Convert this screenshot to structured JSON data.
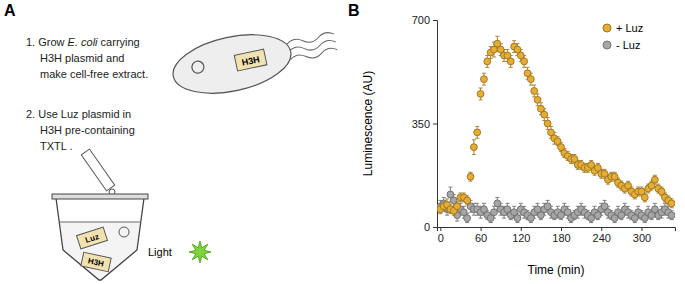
{
  "diagram": {
    "panel_label": "A",
    "step1": {
      "lines": [
        [
          {
            "text": "1. Grow "
          },
          {
            "text": "E. coli",
            "italic": true
          },
          {
            "text": " carrying"
          }
        ],
        [
          {
            "text": "H3H plasmid and"
          }
        ],
        [
          {
            "text": "make cell-free extract."
          }
        ]
      ],
      "cell_label": "H3H"
    },
    "step2": {
      "lines": [
        [
          {
            "text": "2. Use Luz plasmid in"
          }
        ],
        [
          {
            "text": "H3H pre-containing"
          }
        ],
        [
          {
            "text": "TXTL ."
          }
        ]
      ],
      "tube_labels": [
        "Luz",
        "H3H"
      ],
      "output_label": "Light"
    }
  },
  "chart_data": {
    "type": "scatter",
    "title": "B",
    "x_label": "Time (min)",
    "y_label": "Luminescence (AU)",
    "x": [
      0,
      5,
      10,
      15,
      20,
      25,
      30,
      35,
      40,
      45,
      50,
      55,
      60,
      65,
      70,
      75,
      80,
      85,
      90,
      95,
      100,
      105,
      110,
      115,
      120,
      125,
      130,
      135,
      140,
      145,
      150,
      155,
      160,
      165,
      170,
      175,
      180,
      185,
      190,
      195,
      200,
      205,
      210,
      215,
      220,
      225,
      230,
      235,
      240,
      245,
      250,
      255,
      260,
      265,
      270,
      275,
      280,
      285,
      290,
      295,
      300,
      305,
      310,
      315,
      320,
      325,
      330,
      335,
      340,
      345
    ],
    "series": [
      {
        "name": "+ Luz",
        "color": "#e6ad35",
        "marker": "circle",
        "values": [
          60,
          70,
          75,
          60,
          55,
          70,
          100,
          100,
          90,
          170,
          270,
          320,
          450,
          500,
          560,
          590,
          600,
          620,
          600,
          580,
          580,
          560,
          610,
          600,
          580,
          560,
          520,
          500,
          460,
          430,
          400,
          380,
          350,
          320,
          300,
          290,
          270,
          250,
          240,
          230,
          230,
          210,
          210,
          200,
          200,
          210,
          190,
          200,
          180,
          180,
          160,
          170,
          170,
          150,
          140,
          130,
          140,
          120,
          110,
          120,
          120,
          100,
          130,
          140,
          160,
          130,
          120,
          100,
          90,
          80
        ],
        "errors": [
          15,
          15,
          20,
          15,
          15,
          15,
          15,
          15,
          15,
          15,
          25,
          20,
          20,
          20,
          20,
          20,
          25,
          25,
          20,
          20,
          20,
          20,
          20,
          20,
          20,
          20,
          20,
          20,
          20,
          20,
          20,
          20,
          20,
          20,
          20,
          15,
          15,
          15,
          15,
          15,
          15,
          15,
          15,
          15,
          15,
          15,
          15,
          15,
          15,
          15,
          15,
          15,
          15,
          15,
          15,
          15,
          15,
          15,
          15,
          15,
          15,
          15,
          15,
          15,
          15,
          15,
          15,
          15,
          15,
          15
        ]
      },
      {
        "name": "- Luz",
        "color": "#a6a6a6",
        "marker": "circle",
        "values": [
          70,
          80,
          60,
          110,
          90,
          40,
          60,
          50,
          30,
          70,
          60,
          60,
          50,
          60,
          40,
          30,
          50,
          80,
          60,
          50,
          60,
          40,
          50,
          30,
          60,
          50,
          40,
          30,
          50,
          60,
          40,
          60,
          70,
          50,
          40,
          50,
          40,
          60,
          50,
          30,
          40,
          50,
          60,
          50,
          40,
          30,
          50,
          40,
          60,
          70,
          50,
          40,
          30,
          50,
          40,
          60,
          50,
          40,
          30,
          50,
          40,
          30,
          50,
          40,
          60,
          40,
          50,
          60,
          50,
          40
        ],
        "errors": [
          20,
          20,
          20,
          25,
          20,
          20,
          20,
          20,
          15,
          20,
          20,
          20,
          20,
          20,
          15,
          15,
          20,
          20,
          20,
          20,
          20,
          15,
          20,
          15,
          20,
          20,
          15,
          15,
          20,
          20,
          15,
          20,
          20,
          20,
          15,
          20,
          15,
          20,
          20,
          15,
          15,
          20,
          20,
          20,
          15,
          15,
          20,
          15,
          20,
          20,
          20,
          15,
          15,
          20,
          15,
          20,
          20,
          15,
          15,
          20,
          15,
          15,
          20,
          15,
          20,
          15,
          20,
          20,
          20,
          15
        ]
      }
    ],
    "xlim": [
      -5,
      350
    ],
    "xticks": [
      0,
      60,
      120,
      180,
      240,
      300
    ],
    "ylim": [
      0,
      700
    ],
    "yticks": [
      0,
      350,
      700
    ],
    "legend": "upper right"
  }
}
